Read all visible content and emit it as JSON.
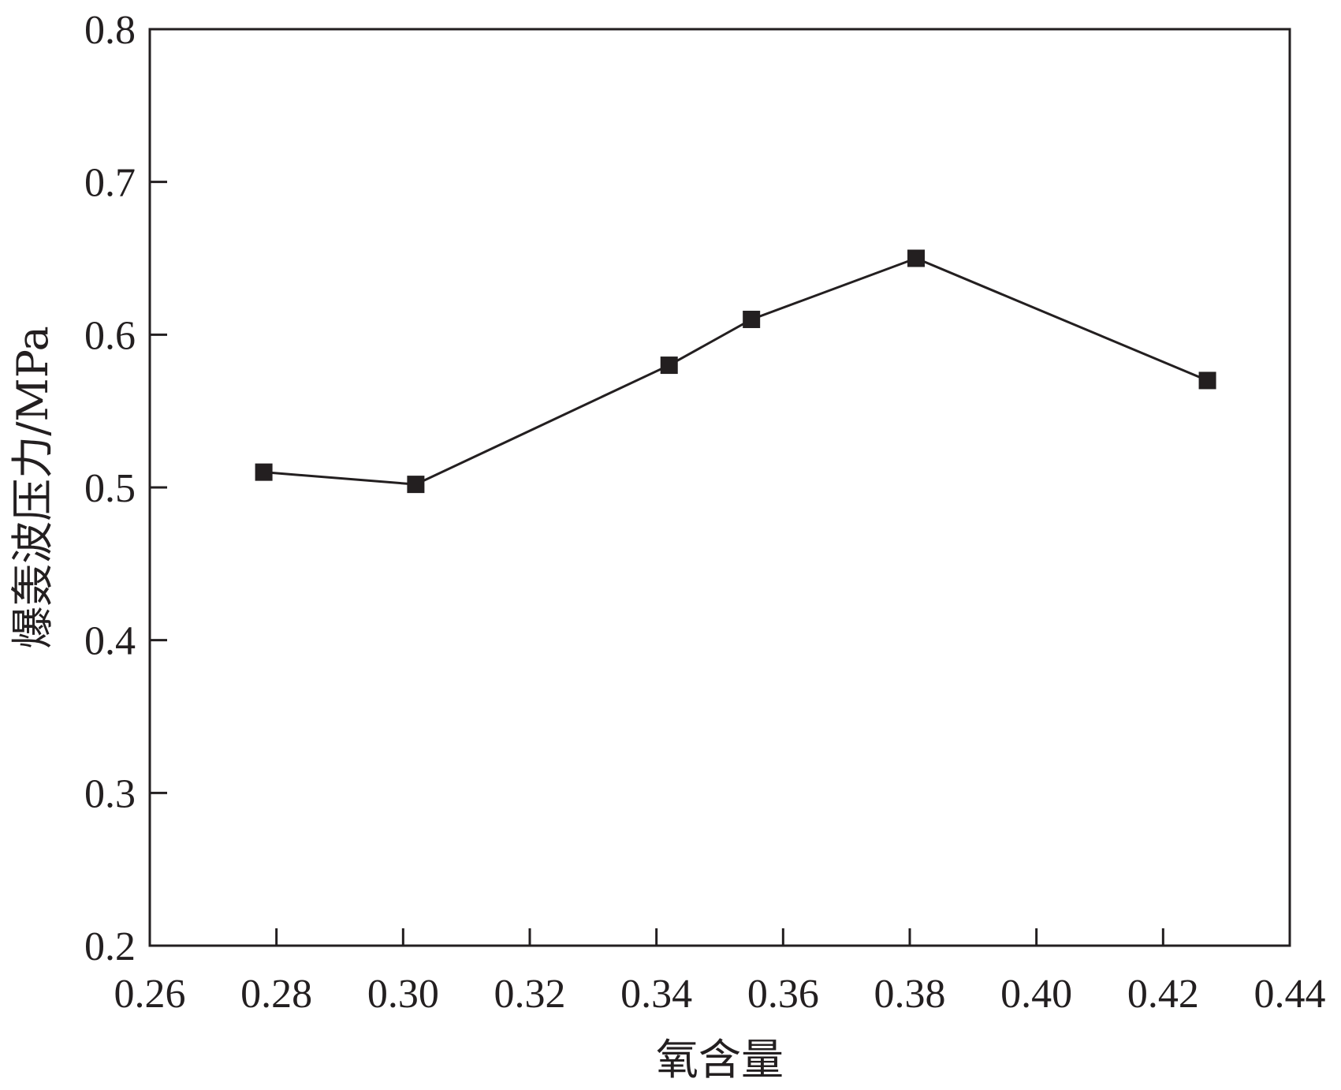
{
  "chart_data": {
    "type": "line",
    "title": "",
    "xlabel": "氧含量",
    "ylabel": "爆轰波压力/MPa",
    "xlim": [
      0.26,
      0.44
    ],
    "ylim": [
      0.2,
      0.8
    ],
    "x_ticks": [
      "0.26",
      "0.28",
      "0.30",
      "0.32",
      "0.34",
      "0.36",
      "0.38",
      "0.40",
      "0.42",
      "0.44"
    ],
    "y_ticks": [
      "0.2",
      "0.3",
      "0.4",
      "0.5",
      "0.6",
      "0.7",
      "0.8"
    ],
    "grid": false,
    "legend": "none",
    "marker": "square",
    "color": "#231f20",
    "series": [
      {
        "x": [
          0.278,
          0.302,
          0.342,
          0.355,
          0.381,
          0.427
        ],
        "y": [
          0.51,
          0.502,
          0.58,
          0.61,
          0.65,
          0.57
        ]
      }
    ]
  }
}
